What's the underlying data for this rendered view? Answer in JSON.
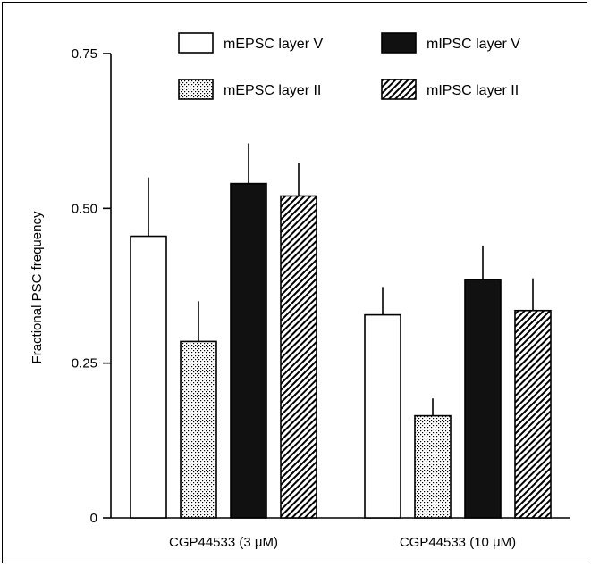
{
  "chart_data": {
    "type": "bar",
    "title": "",
    "xlabel": "",
    "ylabel": "Fractional PSC frequency",
    "ylim": [
      0,
      0.75
    ],
    "yticks": [
      "0",
      "0.25",
      "0.50",
      "0.75"
    ],
    "ytick_values": [
      0,
      0.25,
      0.5,
      0.75
    ],
    "categories": [
      "CGP44533 (3 μM)",
      "CGP44533 (10 μM)"
    ],
    "series": [
      {
        "name": "mEPSC layer V",
        "values": [
          0.455,
          0.328
        ],
        "errors": [
          0.095,
          0.045
        ],
        "pattern": "white"
      },
      {
        "name": "mEPSC layer II",
        "values": [
          0.285,
          0.165
        ],
        "errors": [
          0.065,
          0.028
        ],
        "pattern": "dots"
      },
      {
        "name": "mIPSC layer V",
        "values": [
          0.54,
          0.385
        ],
        "errors": [
          0.065,
          0.055
        ],
        "pattern": "black"
      },
      {
        "name": "mIPSC layer II",
        "values": [
          0.52,
          0.335
        ],
        "errors": [
          0.053,
          0.052
        ],
        "pattern": "hatch"
      }
    ],
    "legend_position": "top",
    "grid": false
  }
}
